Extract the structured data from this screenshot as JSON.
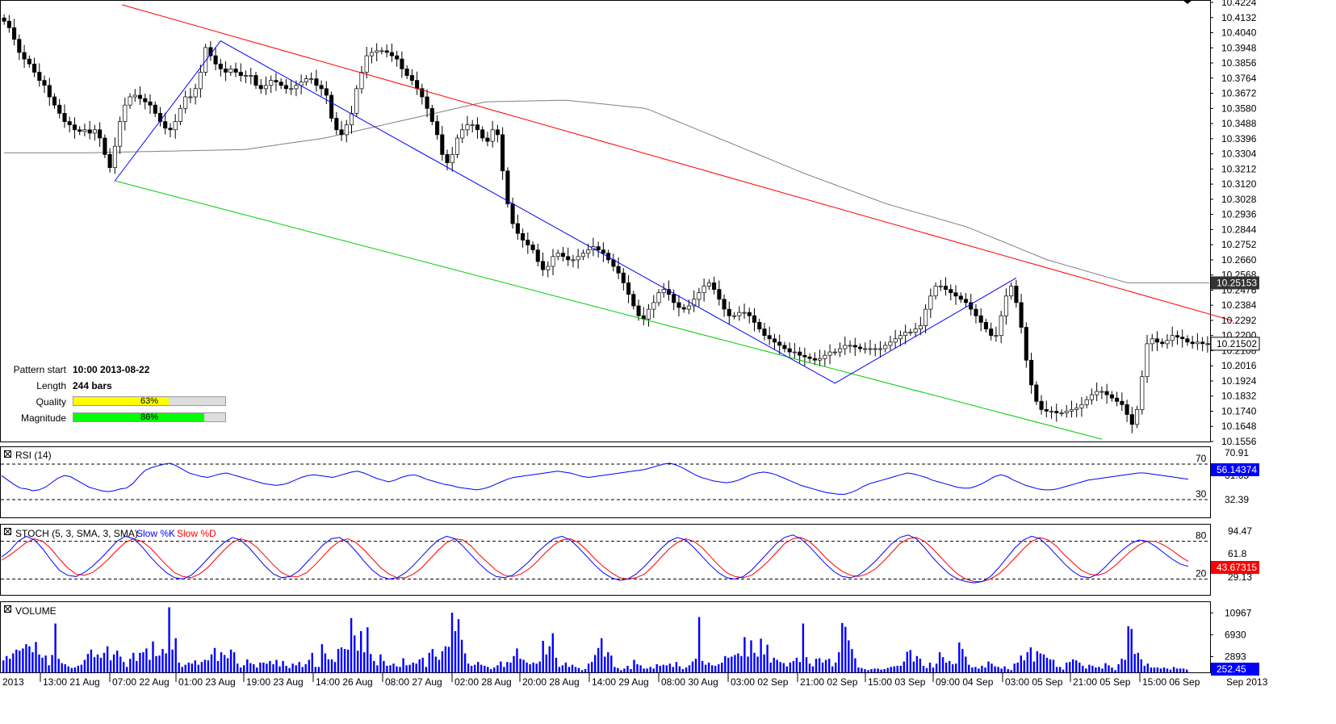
{
  "colors": {
    "upper_line": "#ff0000",
    "lower_line": "#00cc00",
    "zigzag": "#0000ff",
    "ma": "#808080",
    "rsi": "#0000ff",
    "stoch_k": "#0000ff",
    "stoch_d": "#ff0000",
    "volume": "#0000ff",
    "quality_fill": "#ffff00",
    "magnitude_fill": "#00ff00",
    "tag_blue": "#0000ff",
    "tag_red": "#ff0000",
    "tag_dark": "#333333"
  },
  "info": {
    "pattern_start_label": "Pattern start",
    "pattern_start_value": "10:00 2013-08-22",
    "length_label": "Length",
    "length_value": "244 bars",
    "quality_label": "Quality",
    "quality_value": "63%",
    "quality_pct": 63,
    "magnitude_label": "Magnitude",
    "magnitude_value": "86%",
    "magnitude_pct": 86
  },
  "chart_data": [
    {
      "type": "candlestick",
      "panel": "price",
      "y_ticks": [
        "10.4224",
        "10.4132",
        "10.4040",
        "10.3948",
        "10.3856",
        "10.3764",
        "10.3672",
        "10.3580",
        "10.3488",
        "10.3396",
        "10.3304",
        "10.3212",
        "10.3120",
        "10.3028",
        "10.2936",
        "10.2844",
        "10.2752",
        "10.2660",
        "10.2568",
        "10.2476",
        "10.2384",
        "10.2292",
        "10.2200",
        "10.2108",
        "10.2016",
        "10.1924",
        "10.1832",
        "10.1740",
        "10.1648",
        "10.1556"
      ],
      "ylim": [
        10.1556,
        10.4224
      ],
      "current_price_label": "10.21502",
      "ma_label": "10.25153",
      "x_tick_labels": [
        "2013",
        "13:00 21 Aug",
        "07:00 22 Aug",
        "01:00 23 Aug",
        "19:00 23 Aug",
        "14:00 26 Aug",
        "08:00 27 Aug",
        "02:00 28 Aug",
        "20:00 28 Aug",
        "14:00 29 Aug",
        "08:00 30 Aug",
        "03:00 02 Sep",
        "21:00 02 Sep",
        "15:00 03 Sep",
        "09:00 04 Sep",
        "03:00 05 Sep",
        "21:00 05 Sep",
        "15:00 06 Sep",
        "Sep 2013"
      ],
      "closes": [
        10.411,
        10.407,
        10.4,
        10.392,
        10.388,
        10.385,
        10.38,
        10.375,
        10.372,
        10.365,
        10.36,
        10.355,
        10.35,
        10.348,
        10.345,
        10.344,
        10.345,
        10.343,
        10.345,
        10.34,
        10.33,
        10.322,
        10.335,
        10.35,
        10.36,
        10.365,
        10.366,
        10.364,
        10.362,
        10.36,
        10.355,
        10.35,
        10.346,
        10.345,
        10.35,
        10.358,
        10.365,
        10.365,
        10.37,
        10.38,
        10.395,
        10.39,
        10.385,
        10.382,
        10.38,
        10.382,
        10.38,
        10.378,
        10.378,
        10.378,
        10.372,
        10.37,
        10.372,
        10.375,
        10.374,
        10.372,
        10.37,
        10.37,
        10.372,
        10.374,
        10.376,
        10.376,
        10.372,
        10.37,
        10.366,
        10.352,
        10.345,
        10.342,
        10.348,
        10.355,
        10.37,
        10.38,
        10.39,
        10.392,
        10.393,
        10.393,
        10.392,
        10.39,
        10.388,
        10.382,
        10.378,
        10.375,
        10.37,
        10.365,
        10.358,
        10.35,
        10.342,
        10.33,
        10.325,
        10.33,
        10.34,
        10.345,
        10.348,
        10.348,
        10.345,
        10.34,
        10.338,
        10.345,
        10.342,
        10.32,
        10.3,
        10.288,
        10.282,
        10.278,
        10.275,
        10.272,
        10.265,
        10.26,
        10.262,
        10.268,
        10.27,
        10.268,
        10.266,
        10.266,
        10.268,
        10.27,
        10.272,
        10.274,
        10.272,
        10.27,
        10.266,
        10.262,
        10.258,
        10.252,
        10.245,
        10.238,
        10.232,
        10.23,
        10.236,
        10.24,
        10.246,
        10.248,
        10.245,
        10.24,
        10.237,
        10.236,
        10.238,
        10.242,
        10.246,
        10.25,
        10.252,
        10.248,
        10.242,
        10.236,
        10.232,
        10.232,
        10.234,
        10.234,
        10.232,
        10.228,
        10.224,
        10.22,
        10.218,
        10.216,
        10.214,
        10.212,
        10.21,
        10.21,
        10.208,
        10.207,
        10.206,
        10.205,
        10.206,
        10.208,
        10.21,
        10.21,
        10.212,
        10.214,
        10.214,
        10.213,
        10.212,
        10.212,
        10.212,
        10.212,
        10.212,
        10.214,
        10.216,
        10.218,
        10.22,
        10.222,
        10.222,
        10.224,
        10.226,
        10.236,
        10.244,
        10.25,
        10.25,
        10.248,
        10.246,
        10.244,
        10.242,
        10.24,
        10.236,
        10.232,
        10.228,
        10.224,
        10.22,
        10.22,
        10.232,
        10.244,
        10.25,
        10.24,
        10.225,
        10.205,
        10.19,
        10.18,
        10.175,
        10.174,
        10.174,
        10.173,
        10.173,
        10.174,
        10.175,
        10.176,
        10.178,
        10.181,
        10.184,
        10.186,
        10.186,
        10.184,
        10.182,
        10.18,
        10.178,
        10.172,
        10.166,
        10.175,
        10.195,
        10.215,
        10.218,
        10.216,
        10.215,
        10.217,
        10.22,
        10.219,
        10.218,
        10.216,
        10.215,
        10.216,
        10.215,
        10.215
      ],
      "ma200_anchor_values": [
        10.331,
        10.331,
        10.332,
        10.333,
        10.34,
        10.351,
        10.362,
        10.363,
        10.358,
        10.338,
        10.318,
        10.3,
        10.286,
        10.266,
        10.252,
        10.252
      ],
      "annotations": {
        "upper_line": {
          "from_bar": 0,
          "from": 10.421,
          "to_bar": 244,
          "to": 10.229
        },
        "lower_line": {
          "from_bar": 22,
          "from": 10.314,
          "to_bar": 218,
          "to": 10.157
        },
        "zigzag_bars": [
          22,
          43,
          165,
          201
        ],
        "zigzag_values": [
          10.314,
          10.399,
          10.191,
          10.255
        ]
      }
    },
    {
      "type": "line",
      "panel": "RSI",
      "title": "RSI (14)",
      "levels": [
        "70",
        "30"
      ],
      "y_ticks": [
        "70.91",
        "31.65",
        "32.39"
      ],
      "value_label": "56.14374",
      "values": [
        57,
        52,
        47,
        43,
        42,
        40,
        41,
        44,
        49,
        54,
        57,
        56,
        52,
        48,
        44,
        42,
        40,
        39,
        40,
        42,
        43,
        48,
        56,
        63,
        66,
        68,
        70,
        71,
        68,
        64,
        60,
        58,
        56,
        55,
        57,
        59,
        60,
        58,
        56,
        54,
        52,
        50,
        48,
        47,
        46,
        47,
        49,
        52,
        55,
        57,
        58,
        57,
        56,
        55,
        57,
        59,
        61,
        62,
        60,
        57,
        54,
        52,
        50,
        52,
        55,
        57,
        58,
        56,
        53,
        51,
        49,
        47,
        46,
        44,
        43,
        42,
        41,
        42,
        44,
        47,
        50,
        53,
        55,
        56,
        57,
        58,
        59,
        60,
        61,
        62,
        61,
        60,
        58,
        56,
        55,
        56,
        57,
        58,
        59,
        60,
        61,
        62,
        63,
        64,
        66,
        68,
        70,
        71,
        69,
        66,
        62,
        58,
        55,
        53,
        51,
        50,
        49,
        50,
        52,
        55,
        58,
        60,
        61,
        60,
        58,
        55,
        52,
        49,
        46,
        44,
        42,
        40,
        38,
        37,
        36,
        36,
        38,
        41,
        45,
        48,
        50,
        52,
        54,
        56,
        58,
        60,
        59,
        57,
        55,
        52,
        50,
        48,
        46,
        44,
        43,
        43,
        45,
        48,
        52,
        56,
        58,
        56,
        52,
        49,
        46,
        44,
        42,
        41,
        41,
        42,
        44,
        46,
        48,
        50,
        52,
        53,
        54,
        55,
        56,
        57,
        58,
        59,
        60,
        60,
        59,
        58,
        57,
        56,
        55,
        54,
        53
      ],
      "ylim": [
        10,
        90
      ]
    },
    {
      "type": "line",
      "panel": "STOCH",
      "title": "STOCH (5, 3, SMA, 3, SMA)",
      "series": [
        {
          "name": "Slow %K"
        },
        {
          "name": "Slow %D"
        }
      ],
      "levels": [
        "80",
        "20"
      ],
      "y_ticks": [
        "94.47",
        "61.8",
        "29.13"
      ],
      "value_label": "43.67315",
      "k_values": [
        55,
        65,
        80,
        88,
        82,
        68,
        50,
        34,
        26,
        24,
        30,
        40,
        52,
        66,
        80,
        88,
        84,
        72,
        56,
        42,
        30,
        22,
        20,
        26,
        38,
        52,
        66,
        78,
        86,
        82,
        70,
        55,
        40,
        28,
        22,
        24,
        32,
        46,
        60,
        74,
        84,
        86,
        78,
        64,
        48,
        34,
        24,
        20,
        22,
        30,
        42,
        56,
        70,
        82,
        88,
        84,
        72,
        58,
        44,
        32,
        24,
        22,
        26,
        36,
        48,
        62,
        74,
        84,
        88,
        82,
        70,
        56,
        42,
        30,
        22,
        18,
        20,
        28,
        40,
        54,
        68,
        80,
        86,
        82,
        70,
        56,
        42,
        30,
        22,
        20,
        24,
        34,
        48,
        62,
        76,
        86,
        90,
        84,
        72,
        58,
        44,
        32,
        24,
        22,
        26,
        36,
        48,
        62,
        76,
        86,
        90,
        84,
        70,
        54,
        40,
        28,
        20,
        16,
        14,
        16,
        24,
        38,
        54,
        70,
        82,
        88,
        84,
        72,
        58,
        44,
        32,
        24,
        22,
        28,
        40,
        54,
        66,
        76,
        82,
        80,
        72,
        62,
        52,
        44,
        40
      ],
      "d_values": [
        50,
        58,
        68,
        78,
        84,
        80,
        68,
        52,
        38,
        28,
        26,
        30,
        40,
        52,
        66,
        78,
        84,
        80,
        70,
        56,
        42,
        30,
        24,
        22,
        28,
        38,
        52,
        66,
        78,
        84,
        80,
        70,
        56,
        42,
        30,
        24,
        24,
        30,
        42,
        56,
        70,
        80,
        84,
        78,
        66,
        52,
        38,
        28,
        22,
        22,
        28,
        38,
        52,
        66,
        78,
        84,
        82,
        72,
        58,
        46,
        34,
        26,
        24,
        28,
        36,
        48,
        62,
        74,
        82,
        84,
        78,
        66,
        52,
        40,
        30,
        22,
        20,
        22,
        28,
        40,
        54,
        68,
        78,
        84,
        80,
        70,
        56,
        42,
        30,
        24,
        22,
        26,
        36,
        48,
        62,
        76,
        84,
        86,
        80,
        68,
        54,
        42,
        32,
        26,
        24,
        28,
        36,
        48,
        62,
        76,
        84,
        86,
        80,
        68,
        54,
        40,
        28,
        20,
        16,
        16,
        20,
        28,
        40,
        54,
        68,
        80,
        86,
        82,
        72,
        58,
        46,
        34,
        28,
        26,
        30,
        40,
        52,
        64,
        74,
        80,
        80,
        74,
        66,
        56,
        48
      ],
      "ylim": [
        0,
        100
      ]
    },
    {
      "type": "bar",
      "panel": "VOLUME",
      "title": "VOLUME",
      "y_ticks": [
        "10967",
        "6930",
        "2893"
      ],
      "value_label": "252.45",
      "values": [
        2200,
        3000,
        2500,
        3500,
        4200,
        4000,
        4400,
        5200,
        4800,
        3700,
        5600,
        3300,
        2700,
        3100,
        1300,
        3200,
        9000,
        2500,
        1700,
        1500,
        1100,
        800,
        900,
        1200,
        1400,
        2300,
        3400,
        4200,
        2800,
        3300,
        2700,
        3600,
        4800,
        2200,
        3300,
        4000,
        2900,
        1900,
        1000,
        2500,
        3600,
        2100,
        3600,
        3700,
        4400,
        2300,
        5700,
        3000,
        3100,
        4300,
        3500,
        12000,
        4200,
        6300,
        1800,
        1000,
        1400,
        1800,
        1600,
        2200,
        1400,
        1900,
        2300,
        2200,
        3300,
        4500,
        2100,
        3700,
        3200,
        2600,
        4200,
        3700,
        1600,
        900,
        1300,
        2400,
        1700,
        1500,
        900,
        1800,
        1800,
        1600,
        2100,
        1500,
        2300,
        1100,
        2100,
        1200,
        800,
        1600,
        1300,
        1900,
        1000,
        1500,
        2300,
        3600,
        1000,
        1000,
        5200,
        3500,
        2400,
        2400,
        1900,
        4300,
        4600,
        4300,
        4200,
        10000,
        6800,
        4000,
        7600,
        3700,
        8300,
        3400,
        2100,
        1300,
        3300,
        2100,
        1200,
        1300,
        1600,
        1100,
        1000,
        2600,
        1300,
        1400,
        1800,
        1600,
        2400,
        2700,
        1000,
        3600,
        4300,
        2900,
        2300,
        3900,
        4800,
        4700,
        11000,
        7600,
        9800,
        6000,
        3500,
        1600,
        1200,
        1400,
        1900,
        1400,
        1200,
        1000,
        600,
        900,
        1300,
        2000,
        1000,
        1900,
        1800,
        3000,
        4400,
        2500,
        2300,
        1800,
        1500,
        1800,
        1600,
        2000,
        5800,
        3300,
        4800,
        7200,
        2700,
        1000,
        1300,
        1800,
        1000,
        1400,
        1000,
        800,
        400,
        600,
        1600,
        1900,
        3200,
        4500,
        6300,
        2900,
        3700,
        3100,
        1000,
        800,
        400,
        700,
        1200,
        600,
        2300,
        1500,
        1300,
        700,
        700,
        1000,
        700,
        1500,
        1200,
        1400,
        1300,
        1600,
        1000,
        1900,
        1100,
        600,
        900,
        1300,
        2000,
        2500,
        10200,
        2100,
        1400,
        1800,
        1300,
        1200,
        1500,
        1800,
        3000,
        2700,
        2900,
        3200,
        3500,
        3000,
        6500,
        2900,
        5900,
        3600,
        2900,
        6200,
        3300,
        5100,
        1800,
        2700,
        2300,
        1900,
        1700,
        1100,
        1800,
        2100,
        2700,
        1900,
        9000,
        2800,
        1600,
        1100,
        2500,
        2600,
        1800,
        2300,
        2500,
        1100,
        1800,
        3700,
        9100,
        8400,
        5900,
        4300,
        2600,
        900,
        800,
        600,
        400,
        600,
        700,
        700,
        500,
        600,
        800,
        1000,
        1100,
        1200,
        1200,
        2000,
        3800,
        4100,
        2000,
        3000,
        2500,
        1200,
        800,
        1800,
        900,
        1600,
        3700,
        2800,
        1800,
        2100,
        1500,
        1600,
        5500,
        4300,
        2900,
        1400,
        900,
        1000,
        700,
        1200,
        900,
        2000,
        1600,
        1100,
        1000,
        700,
        1100,
        600,
        400,
        1600,
        1800,
        3100,
        2200,
        3700,
        4600,
        2000,
        3900,
        3500,
        3300,
        2700,
        2400,
        2300,
        1000,
        1000,
        500,
        1800,
        1900,
        2400,
        2200,
        1800,
        1200,
        700,
        1400,
        1200,
        900,
        1000,
        700,
        1700,
        1300,
        900,
        400,
        1500,
        2500,
        2300,
        8500,
        8000,
        3400,
        3600,
        2400,
        1200,
        1600,
        900,
        900,
        900,
        700,
        900,
        700,
        500,
        1000,
        700,
        700,
        700,
        500
      ],
      "ylim": [
        0,
        12500
      ]
    }
  ]
}
